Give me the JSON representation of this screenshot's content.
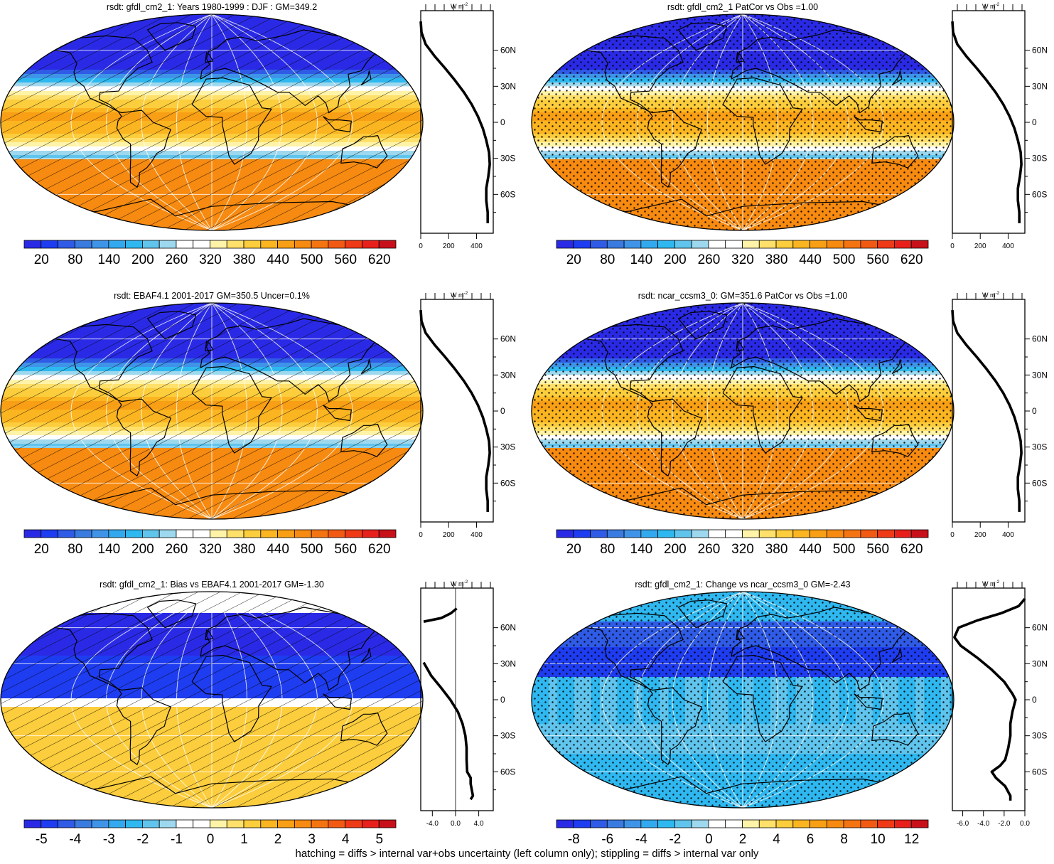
{
  "footer": "hatching = diffs > internal var+obs uncertainty (left column only); stippling = diffs > internal var only",
  "profile_unit": "W m",
  "profile_unit_exp": "-2",
  "lat_ticks": [
    "60N",
    "30N",
    "0",
    "30S",
    "60S"
  ],
  "palette": [
    "#2a2ae6",
    "#1e3cf0",
    "#2f5be6",
    "#3a7be0",
    "#3f94e8",
    "#32a9ee",
    "#2fb8f0",
    "#60c4ec",
    "#9dd8ee",
    "#ffffff",
    "#ffffff",
    "#fff3a8",
    "#ffe06a",
    "#fccd3c",
    "#fbb521",
    "#f89f15",
    "#f78a10",
    "#f57412",
    "#f25a14",
    "#ef3a18",
    "#e8201c",
    "#c8101a"
  ],
  "chart_data": [
    {
      "type": "heatmap",
      "title": "rsdt: gfdl_cm2_1: Years 1980-1999 : DJF : GM=349.2",
      "field": "insolation",
      "pattern": "hatch",
      "colorbar_labels": [
        "20",
        "80",
        "140",
        "200",
        "260",
        "320",
        "380",
        "440",
        "500",
        "560",
        "620"
      ],
      "profile": {
        "x_ticks": [
          "0",
          "200",
          "400"
        ],
        "xlim": [
          0,
          520
        ],
        "lat": [
          84,
          75,
          65,
          55,
          45,
          35,
          25,
          15,
          5,
          -5,
          -15,
          -25,
          -35,
          -45,
          -55,
          -65,
          -75,
          -84
        ],
        "values": [
          0,
          5,
          35,
          100,
          175,
          245,
          310,
          365,
          410,
          445,
          470,
          490,
          495,
          485,
          470,
          470,
          480,
          480
        ]
      }
    },
    {
      "type": "heatmap",
      "title": "rsdt: gfdl_cm2_1 PatCor vs Obs =1.00",
      "field": "insolation",
      "pattern": "stipple",
      "colorbar_labels": [
        "20",
        "80",
        "140",
        "200",
        "260",
        "320",
        "380",
        "440",
        "500",
        "560",
        "620"
      ],
      "profile": {
        "x_ticks": [
          "0",
          "200",
          "400"
        ],
        "xlim": [
          0,
          520
        ],
        "lat": [
          84,
          75,
          65,
          55,
          45,
          35,
          25,
          15,
          5,
          -5,
          -15,
          -25,
          -35,
          -45,
          -55,
          -65,
          -75,
          -84
        ],
        "values": [
          0,
          5,
          35,
          100,
          175,
          245,
          310,
          365,
          410,
          445,
          470,
          490,
          495,
          485,
          470,
          470,
          480,
          480
        ]
      }
    },
    {
      "type": "heatmap",
      "title": "rsdt: EBAF4.1 2001-2017 GM=350.5 Uncer=0.1%",
      "field": "insolation",
      "pattern": "hatch",
      "colorbar_labels": [
        "20",
        "80",
        "140",
        "200",
        "260",
        "320",
        "380",
        "440",
        "500",
        "560",
        "620"
      ],
      "profile": {
        "x_ticks": [
          "0",
          "200",
          "400"
        ],
        "xlim": [
          0,
          520
        ],
        "lat": [
          84,
          75,
          65,
          55,
          45,
          35,
          25,
          15,
          5,
          -5,
          -15,
          -25,
          -35,
          -45,
          -55,
          -65,
          -75,
          -84
        ],
        "values": [
          0,
          5,
          35,
          100,
          175,
          245,
          310,
          365,
          410,
          445,
          470,
          490,
          495,
          485,
          470,
          470,
          480,
          480
        ]
      }
    },
    {
      "type": "heatmap",
      "title": "rsdt: ncar_ccsm3_0: GM=351.6 PatCor vs Obs =1.00",
      "field": "insolation",
      "pattern": "stipple",
      "colorbar_labels": [
        "20",
        "80",
        "140",
        "200",
        "260",
        "320",
        "380",
        "440",
        "500",
        "560",
        "620"
      ],
      "profile": {
        "x_ticks": [
          "0",
          "200",
          "400"
        ],
        "xlim": [
          0,
          520
        ],
        "lat": [
          84,
          75,
          65,
          55,
          45,
          35,
          25,
          15,
          5,
          -5,
          -15,
          -25,
          -35,
          -45,
          -55,
          -65,
          -75,
          -84
        ],
        "values": [
          0,
          5,
          35,
          100,
          175,
          245,
          310,
          365,
          410,
          445,
          470,
          490,
          495,
          485,
          470,
          470,
          480,
          480
        ]
      }
    },
    {
      "type": "heatmap",
      "title": "rsdt: gfdl_cm2_1: Bias vs EBAF4.1 2001-2017 GM=-1.30",
      "field": "bias",
      "pattern": "hatch",
      "colorbar_labels": [
        "-5",
        "-4",
        "-3",
        "-2",
        "-1",
        "0",
        "1",
        "2",
        "3",
        "4",
        "5"
      ],
      "profile": {
        "x_ticks": [
          "-4.0",
          "0.0",
          "4.0"
        ],
        "xlim": [
          -6,
          6.5
        ],
        "segments": [
          {
            "lat": [
              76,
              72,
              68,
              65
            ],
            "values": [
              0.2,
              -0.8,
              -2.5,
              -5.5
            ]
          },
          {
            "lat": [
              31,
              20,
              10,
              0,
              -10,
              -20,
              -30,
              -40,
              -50,
              -60,
              -65,
              -70,
              -75,
              -80,
              -83
            ],
            "values": [
              -5.5,
              -4.2,
              -2.5,
              -0.9,
              0.4,
              1.2,
              1.7,
              1.9,
              1.9,
              2.0,
              2.6,
              2.6,
              2.8,
              3.0,
              2.6
            ]
          }
        ]
      }
    },
    {
      "type": "heatmap",
      "title": "rsdt: gfdl_cm2_1: Change vs ncar_ccsm3_0 GM=-2.43",
      "field": "change",
      "pattern": "stipple",
      "colorbar_labels": [
        "-8",
        "-6",
        "-4",
        "-2",
        "0",
        "2",
        "4",
        "6",
        "8",
        "10",
        "12"
      ],
      "profile": {
        "x_ticks": [
          "-6.0",
          "-4.0",
          "-2.0",
          "0.0"
        ],
        "xlim": [
          -7,
          0
        ],
        "lat": [
          84,
          78,
          72,
          66,
          60,
          52,
          45,
          35,
          25,
          15,
          5,
          0,
          -10,
          -20,
          -30,
          -40,
          -50,
          -55,
          -60,
          -65,
          -72,
          -80,
          -84
        ],
        "values": [
          0,
          -0.6,
          -2.3,
          -4.6,
          -6.4,
          -6.8,
          -6.2,
          -4.6,
          -3.2,
          -2.0,
          -1.2,
          -0.9,
          -1.2,
          -1.4,
          -1.4,
          -1.6,
          -1.9,
          -2.4,
          -3.2,
          -2.8,
          -1.9,
          -1.4,
          -1.4
        ]
      }
    }
  ]
}
